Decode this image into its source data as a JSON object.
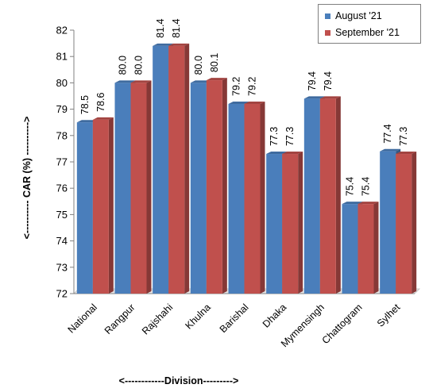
{
  "chart_data": {
    "type": "bar",
    "categories": [
      "National",
      "Rangpur",
      "Rajshahi",
      "Khulna",
      "Barishal",
      "Dhaka",
      "Mymensingh",
      "Chattogram",
      "Sylhet"
    ],
    "series": [
      {
        "name": "August '21",
        "values": [
          78.5,
          80.0,
          81.4,
          80.0,
          79.2,
          77.3,
          79.4,
          75.4,
          77.4
        ],
        "labels": [
          "78.5",
          "80.0",
          "81.4",
          "80.0",
          "79.2",
          "77.3",
          "79.4",
          "75.4",
          "77.4"
        ],
        "color": "#4a7ebb"
      },
      {
        "name": "September '21",
        "values": [
          78.6,
          80.0,
          81.4,
          80.1,
          79.2,
          77.3,
          79.4,
          75.4,
          77.3
        ],
        "labels": [
          "78.6",
          "80.0",
          "81.4",
          "80.1",
          "79.2",
          "77.3",
          "79.4",
          "75.4",
          "77.3"
        ],
        "color": "#c0504d"
      }
    ],
    "ylabel": "<---------- CAR (%) ---------->",
    "xlabel": "<------------Division--------->",
    "ylim": [
      72,
      82
    ],
    "yticks": [
      72,
      73,
      74,
      75,
      76,
      77,
      78,
      79,
      80,
      81,
      82
    ],
    "legend_position": "top-right",
    "grid": false
  }
}
